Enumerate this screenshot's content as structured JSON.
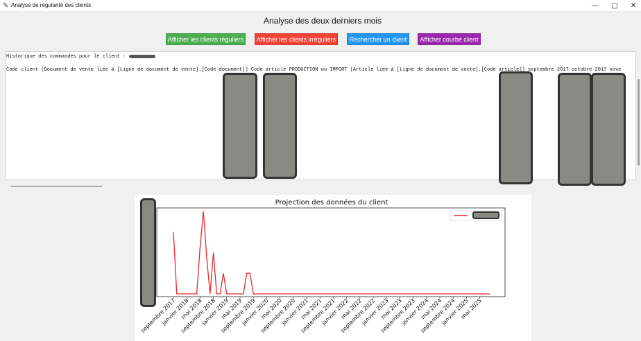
{
  "window": {
    "title": "Analyse de régularité des clients",
    "minimize": "—",
    "maximize": "▢",
    "close": "✕"
  },
  "heading": "Analyse des deux derniers mois",
  "buttons": [
    {
      "label": "Afficher les clients réguliers",
      "color": "#4caf50"
    },
    {
      "label": "Afficher les clients irréguliers",
      "color": "#f44336"
    },
    {
      "label": "Rechercher un client",
      "color": "#2196f3"
    },
    {
      "label": "Afficher courbe client",
      "color": "#9c27b0"
    }
  ],
  "history": {
    "line1": "Historique des commandes pour le client :",
    "line2": "Code client (Document de vente liée à [Ligne de document de vente].[Code document]) Code article PRODUCTION ou IMPORT (Article liée à [Ligne de document de vente].[Code article])  septembre 2017  octobre 2017  nove"
  },
  "chart_data": {
    "type": "line",
    "title": "Projection des données du client",
    "x": [
      "septembre 2017",
      "octobre 2017",
      "novembre 2017",
      "décembre 2017",
      "janvier 2018",
      "février 2018",
      "mars 2018",
      "avril 2018",
      "mai 2018",
      "juin 2018",
      "juillet 2018",
      "août 2018",
      "septembre 2018",
      "octobre 2018",
      "novembre 2018",
      "décembre 2018",
      "janvier 2019",
      "février 2019",
      "mars 2019",
      "avril 2019",
      "mai 2019",
      "juin 2019",
      "juillet 2019",
      "août 2019",
      "septembre 2019",
      "octobre 2019",
      "novembre 2019",
      "décembre 2019",
      "janvier 2020",
      "février 2020",
      "mars 2020",
      "avril 2020",
      "mai 2020",
      "juin 2020",
      "juillet 2020",
      "août 2020",
      "septembre 2020",
      "octobre 2020",
      "novembre 2020",
      "décembre 2020",
      "janvier 2021",
      "février 2021",
      "mars 2021",
      "avril 2021",
      "mai 2021",
      "juin 2021",
      "juillet 2021",
      "août 2021",
      "septembre 2021",
      "octobre 2021",
      "novembre 2021",
      "décembre 2021",
      "janvier 2022",
      "février 2022",
      "mars 2022",
      "avril 2022",
      "mai 2022",
      "juin 2022",
      "juillet 2022",
      "août 2022",
      "septembre 2022",
      "octobre 2022",
      "novembre 2022",
      "décembre 2022",
      "janvier 2023",
      "février 2023",
      "mars 2023",
      "avril 2023",
      "mai 2023",
      "juin 2023",
      "juillet 2023",
      "août 2023",
      "septembre 2023",
      "octobre 2023",
      "novembre 2023",
      "décembre 2023",
      "janvier 2024",
      "février 2024",
      "mars 2024",
      "avril 2024",
      "mai 2024",
      "juin 2024",
      "juillet 2024",
      "août 2024",
      "septembre 2024",
      "octobre 2024",
      "novembre 2024",
      "décembre 2024",
      "janvier 2025",
      "février 2025",
      "mars 2025",
      "avril 2025",
      "mai 2025",
      "juin 2025",
      "juillet 2025",
      "août 2025"
    ],
    "tick_labels": [
      "septembre 2017",
      "janvier 2018",
      "mai 2018",
      "septembre 2018",
      "janvier 2019",
      "mai 2019",
      "septembre 2019",
      "janvier 2020",
      "mai 2020",
      "septembre 2020",
      "janvier 2021",
      "mai 2021",
      "septembre 2021",
      "janvier 2022",
      "mai 2022",
      "septembre 2022",
      "janvier 2023",
      "mai 2023",
      "septembre 2023",
      "janvier 2024",
      "mai 2024",
      "septembre 2024",
      "janvier 2025",
      "mai 2025"
    ],
    "series": [
      {
        "name": "",
        "color": "#e8262b",
        "values": [
          12,
          0,
          0,
          0,
          0,
          0,
          0,
          0,
          9,
          16,
          7,
          0,
          8,
          0,
          0,
          4,
          0,
          0,
          0,
          0,
          0,
          0,
          4,
          4,
          0,
          0,
          0,
          0,
          0,
          0,
          0,
          0,
          0,
          0,
          0,
          0,
          0,
          0,
          0,
          0,
          0,
          0,
          0,
          0,
          0,
          0,
          0,
          0,
          0,
          0,
          0,
          0,
          0,
          0,
          0,
          0,
          0,
          0,
          0,
          0,
          0,
          0,
          0,
          0,
          0,
          0,
          0,
          0,
          0,
          0,
          0,
          0,
          0,
          0,
          0,
          0,
          0,
          0,
          0,
          0,
          0,
          0,
          0,
          0,
          0,
          0,
          0,
          0,
          0,
          0,
          0,
          0,
          0,
          0,
          0,
          0
        ]
      }
    ],
    "legend": "top-right",
    "grid": false
  }
}
